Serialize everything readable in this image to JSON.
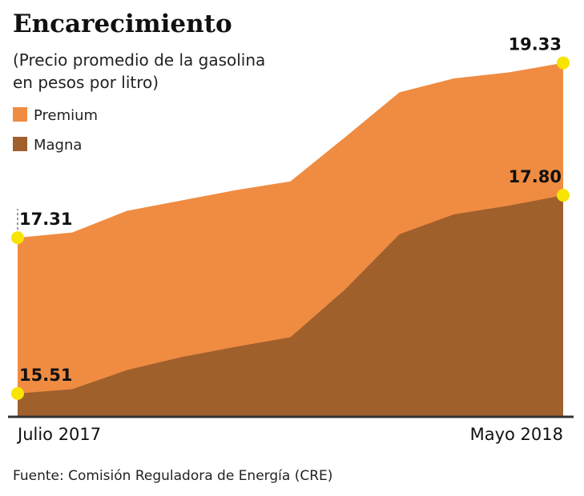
{
  "chart_data": {
    "type": "area",
    "title": "Encarecimiento",
    "subtitle": [
      "(Precio promedio de la gasolina",
      "en pesos por litro)"
    ],
    "categories": [
      "Julio 2017",
      null,
      null,
      null,
      null,
      null,
      null,
      null,
      null,
      null,
      "Mayo 2018"
    ],
    "series": [
      {
        "name": "Premium",
        "color": "#ef8c42",
        "values": [
          17.31,
          17.37,
          17.62,
          17.74,
          17.86,
          17.96,
          18.47,
          18.99,
          19.15,
          19.22,
          19.33
        ],
        "value_labels": [
          "17.31",
          null,
          null,
          null,
          null,
          null,
          null,
          null,
          null,
          null,
          "19.33"
        ]
      },
      {
        "name": "Magna",
        "color": "#a0602c",
        "values": [
          15.51,
          15.56,
          15.78,
          15.93,
          16.05,
          16.16,
          16.71,
          17.35,
          17.58,
          17.68,
          17.8
        ],
        "value_labels": [
          "15.51",
          null,
          null,
          null,
          null,
          null,
          null,
          null,
          null,
          null,
          "17.80"
        ]
      }
    ],
    "ylim": [
      15.25,
      19.4
    ],
    "source": "Fuente: Comisión Reguladora de Energía (CRE)"
  }
}
